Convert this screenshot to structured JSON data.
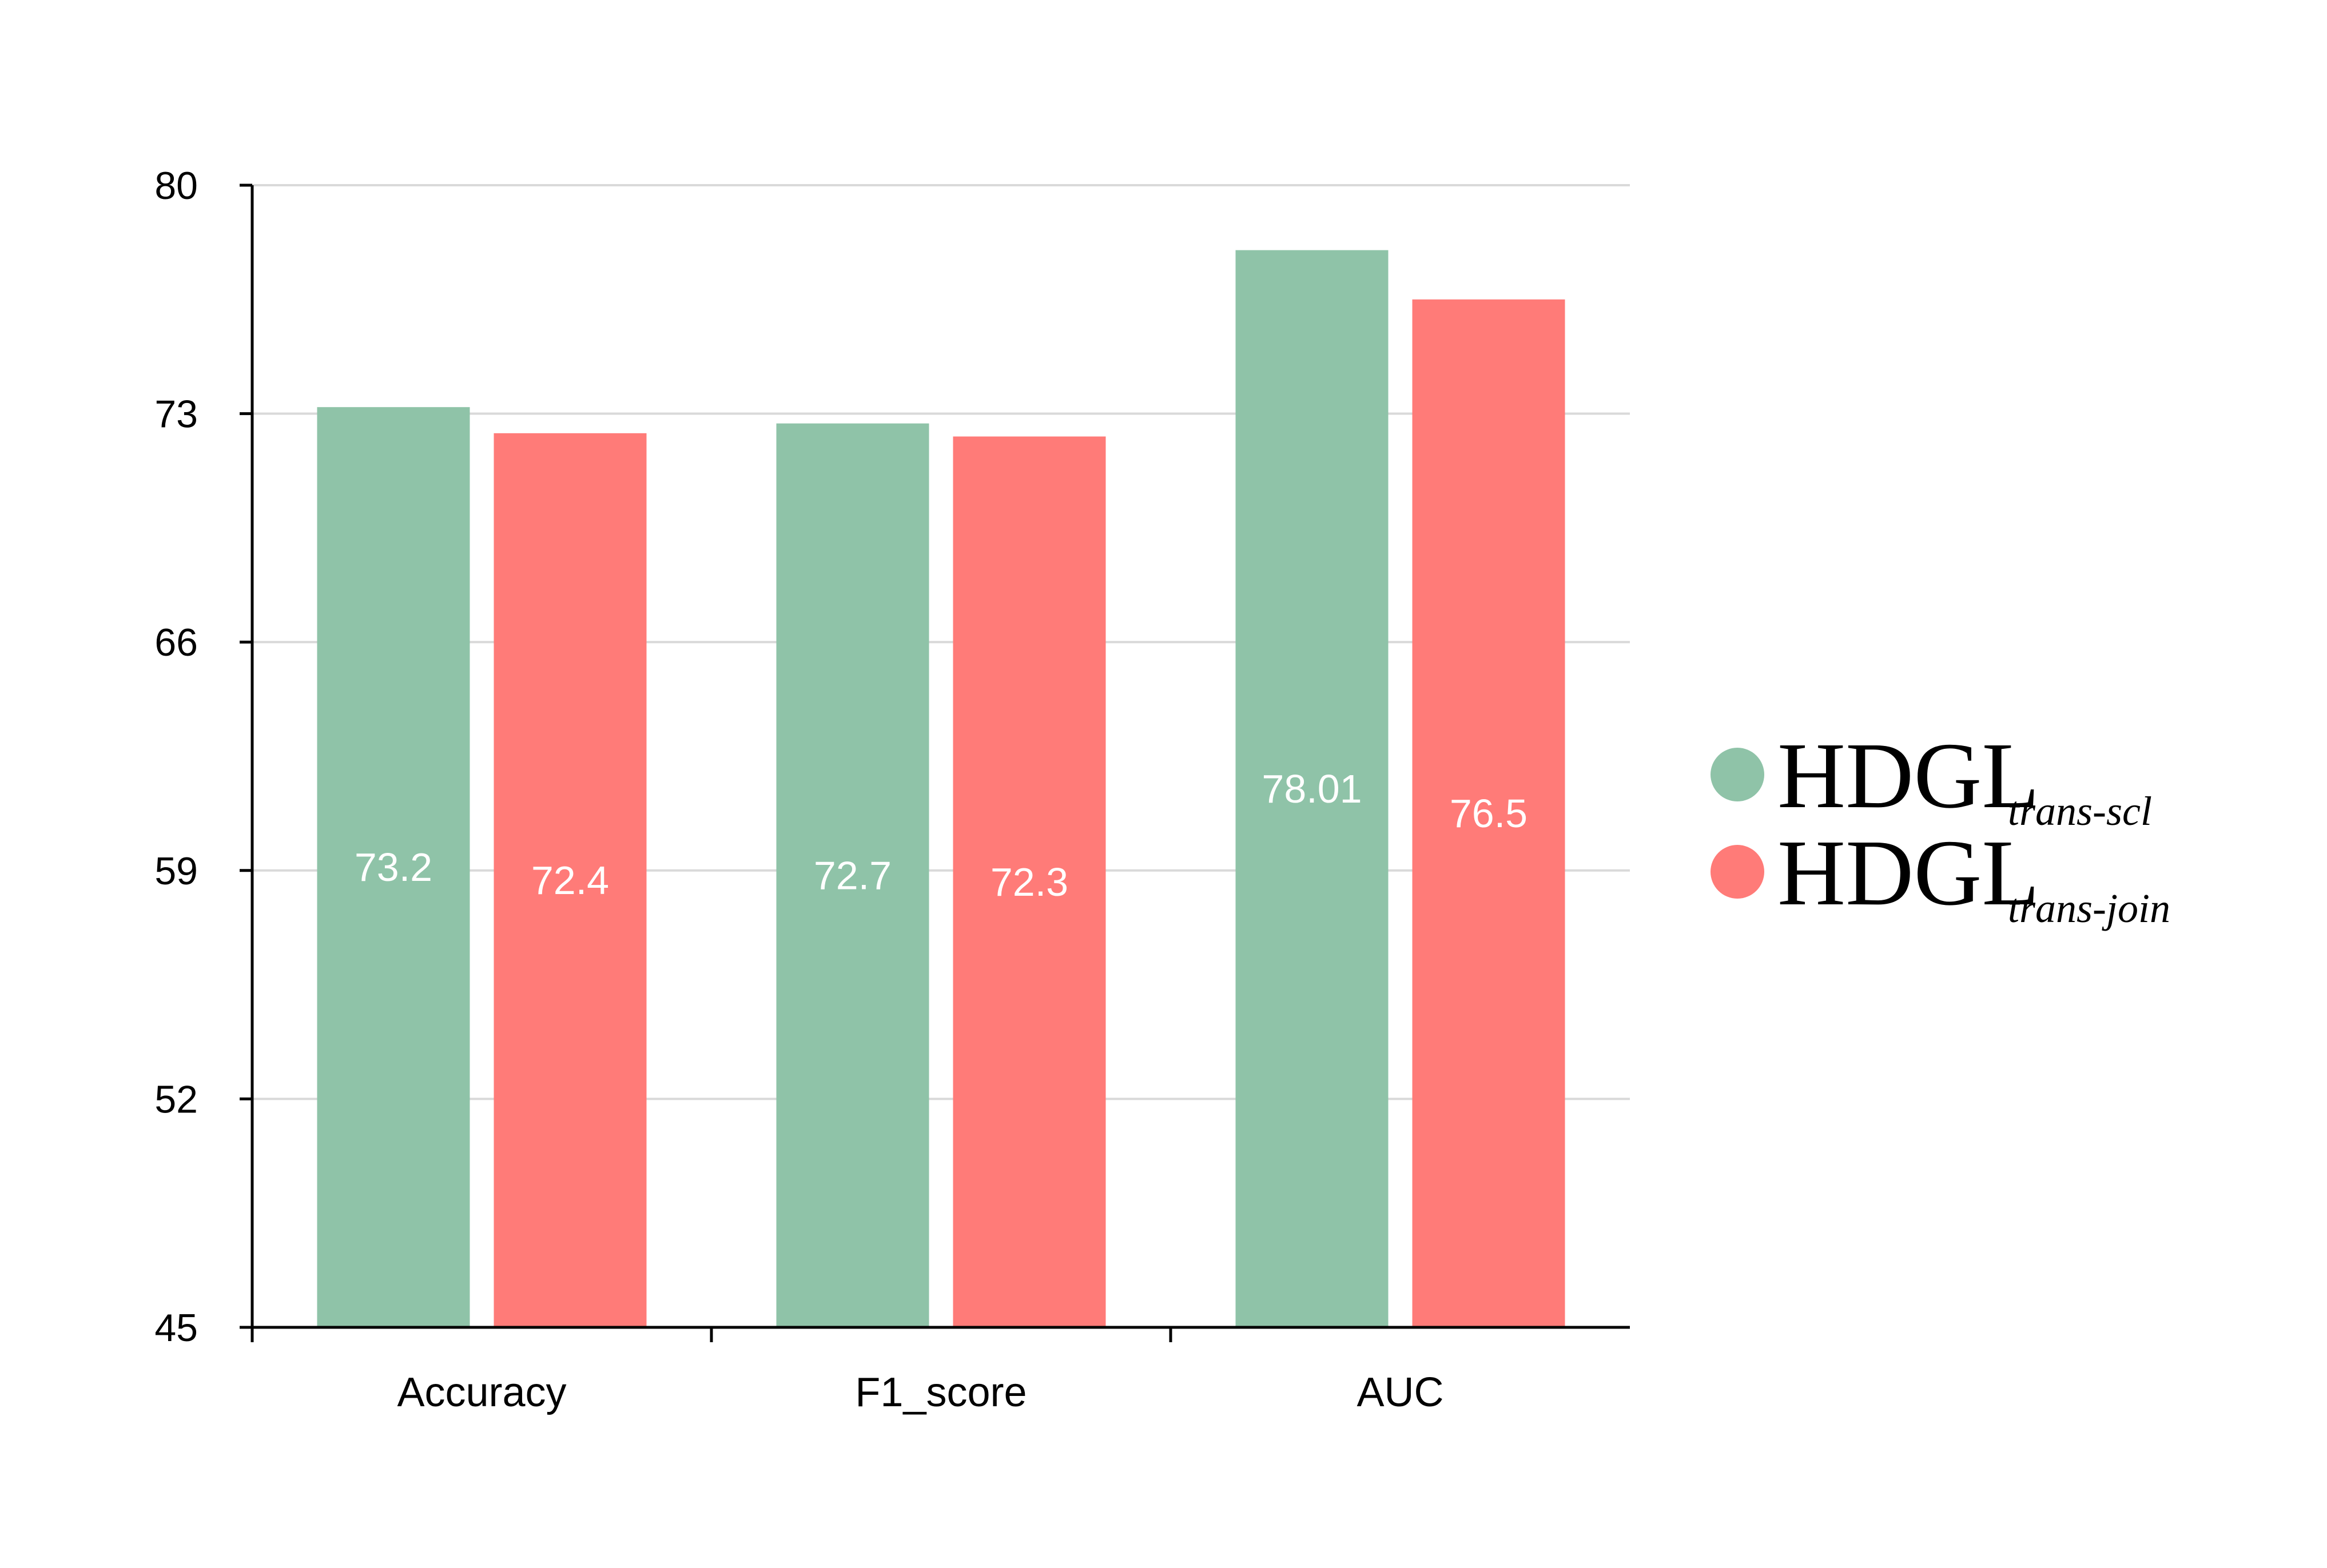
{
  "chart_data": {
    "type": "bar",
    "title": "",
    "xlabel": "",
    "ylabel": "",
    "categories": [
      "Accuracy",
      "F1_score",
      "AUC"
    ],
    "ylim": [
      45,
      80
    ],
    "yticks": [
      "45",
      "52",
      "59",
      "66",
      "73",
      "80"
    ],
    "grid": true,
    "legend_position": "right",
    "series": [
      {
        "name": "HDGL",
        "name_subscript": "trans-scl",
        "color": "#8fc3a8",
        "values": [
          73.2,
          72.7,
          78.01
        ],
        "labels": [
          "73.2",
          "72.7",
          "78.01"
        ]
      },
      {
        "name": "HDGL",
        "name_subscript": "trans-join",
        "color": "#ff7b78",
        "values": [
          72.4,
          72.3,
          76.5
        ],
        "labels": [
          "72.4",
          "72.3",
          "76.5"
        ]
      }
    ],
    "colors": {
      "axis": "#000000",
      "grid": "#d9d9d9",
      "data_label": "#ffffff"
    }
  }
}
